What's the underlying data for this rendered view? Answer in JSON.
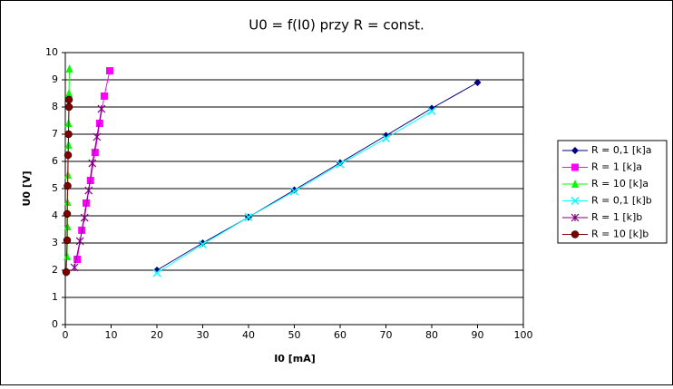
{
  "chart_data": {
    "type": "line",
    "title": "U0 = f(I0) przy R = const.",
    "x_label": "I0 [mA]",
    "y_label": "U0 [V]",
    "xlim": [
      0,
      100
    ],
    "xticks": [
      0,
      10,
      20,
      30,
      40,
      50,
      60,
      70,
      80,
      90,
      100
    ],
    "ylim": [
      0,
      10
    ],
    "yticks": [
      0,
      1,
      2,
      3,
      4,
      5,
      6,
      7,
      8,
      9,
      10
    ],
    "grid": true,
    "legend": "right",
    "series": [
      {
        "name": "R = 0,1 [k]a",
        "color": "#000080",
        "marker": "diamond",
        "x": [
          20,
          30,
          40,
          50,
          60,
          70,
          80,
          90
        ],
        "values": [
          2.0,
          3.0,
          3.95,
          4.95,
          5.95,
          6.95,
          7.95,
          8.9
        ]
      },
      {
        "name": "R = 1 [k]a",
        "color": "#ff00ff",
        "marker": "square",
        "x": [
          2.6,
          3.6,
          4.55,
          5.5,
          6.5,
          7.5,
          8.5,
          9.7
        ],
        "values": [
          2.4,
          3.47,
          4.47,
          5.3,
          6.33,
          7.4,
          8.4,
          9.33
        ]
      },
      {
        "name": "R = 10 [k]a",
        "color": "#00ff00",
        "marker": "triangle",
        "x": [
          0.4,
          0.5,
          0.5,
          0.6,
          0.7,
          0.7,
          0.8,
          0.9
        ],
        "values": [
          2.5,
          3.6,
          4.5,
          5.5,
          6.6,
          7.4,
          8.5,
          9.4
        ]
      },
      {
        "name": "R = 0,1 [k]b",
        "color": "#00ffff",
        "marker": "x",
        "x": [
          20,
          30,
          40,
          50,
          60,
          70,
          80
        ],
        "values": [
          1.9,
          2.95,
          3.95,
          4.9,
          5.9,
          6.85,
          7.85
        ]
      },
      {
        "name": "R = 1 [k]b",
        "color": "#800080",
        "marker": "star",
        "x": [
          2.0,
          3.2,
          4.2,
          5.1,
          5.9,
          6.9,
          7.9
        ],
        "values": [
          2.1,
          3.07,
          3.93,
          4.93,
          5.93,
          6.9,
          7.93
        ]
      },
      {
        "name": "R = 10 [k]b",
        "color": "#800000",
        "marker": "circle",
        "x": [
          0.2,
          0.4,
          0.4,
          0.5,
          0.6,
          0.7,
          0.8,
          0.8
        ],
        "values": [
          1.93,
          3.1,
          4.07,
          5.1,
          6.23,
          7.0,
          8.0,
          8.27
        ]
      }
    ]
  }
}
